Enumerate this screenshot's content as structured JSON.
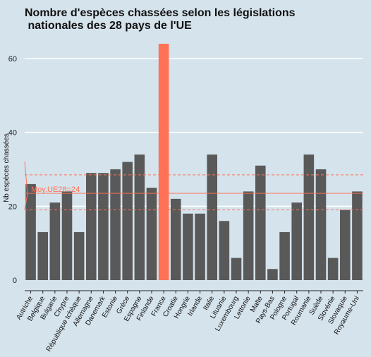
{
  "chart_data": {
    "type": "bar",
    "title_line1": "Nombre d'espèces chassées selon les législations",
    "title_line2": " nationales des 28 pays de l'UE",
    "ylabel": "Nb espèces chassées",
    "xlabel": "",
    "ylim": [
      0,
      64
    ],
    "yticks": [
      0,
      20,
      40,
      60
    ],
    "grid": true,
    "categories": [
      "Autriche",
      "Belgique",
      "Bulgarie",
      "Chypre",
      "République tchèque",
      "Allemagne",
      "Danemark",
      "Estonie",
      "Grèce",
      "Espagne",
      "Finlande",
      "France",
      "Croatie",
      "Hongrie",
      "Irlande",
      "Italie",
      "Lituanie",
      "Luxembourg",
      "Lettonie",
      "Malte",
      "Pays-Bas",
      "Pologne",
      "Portugal",
      "Roumanie",
      "Suède",
      "Slovénie",
      "Slovaquie",
      "Royaume-Uni"
    ],
    "values": [
      26,
      13,
      21,
      24,
      13,
      29,
      29,
      30,
      32,
      34,
      25,
      64,
      22,
      18,
      18,
      34,
      16,
      6,
      24,
      31,
      3,
      13,
      21,
      34,
      30,
      6,
      19,
      24
    ],
    "highlight": "France",
    "average": {
      "label": "Moy.UE28=24",
      "value": 23.5,
      "ci_low": 19,
      "ci_high": 28.5
    },
    "colors": {
      "bar": "#595959",
      "highlight": "#ff7256",
      "average": "#ff7256",
      "grid": "#ffffff",
      "background": "#d5e3ec"
    }
  }
}
